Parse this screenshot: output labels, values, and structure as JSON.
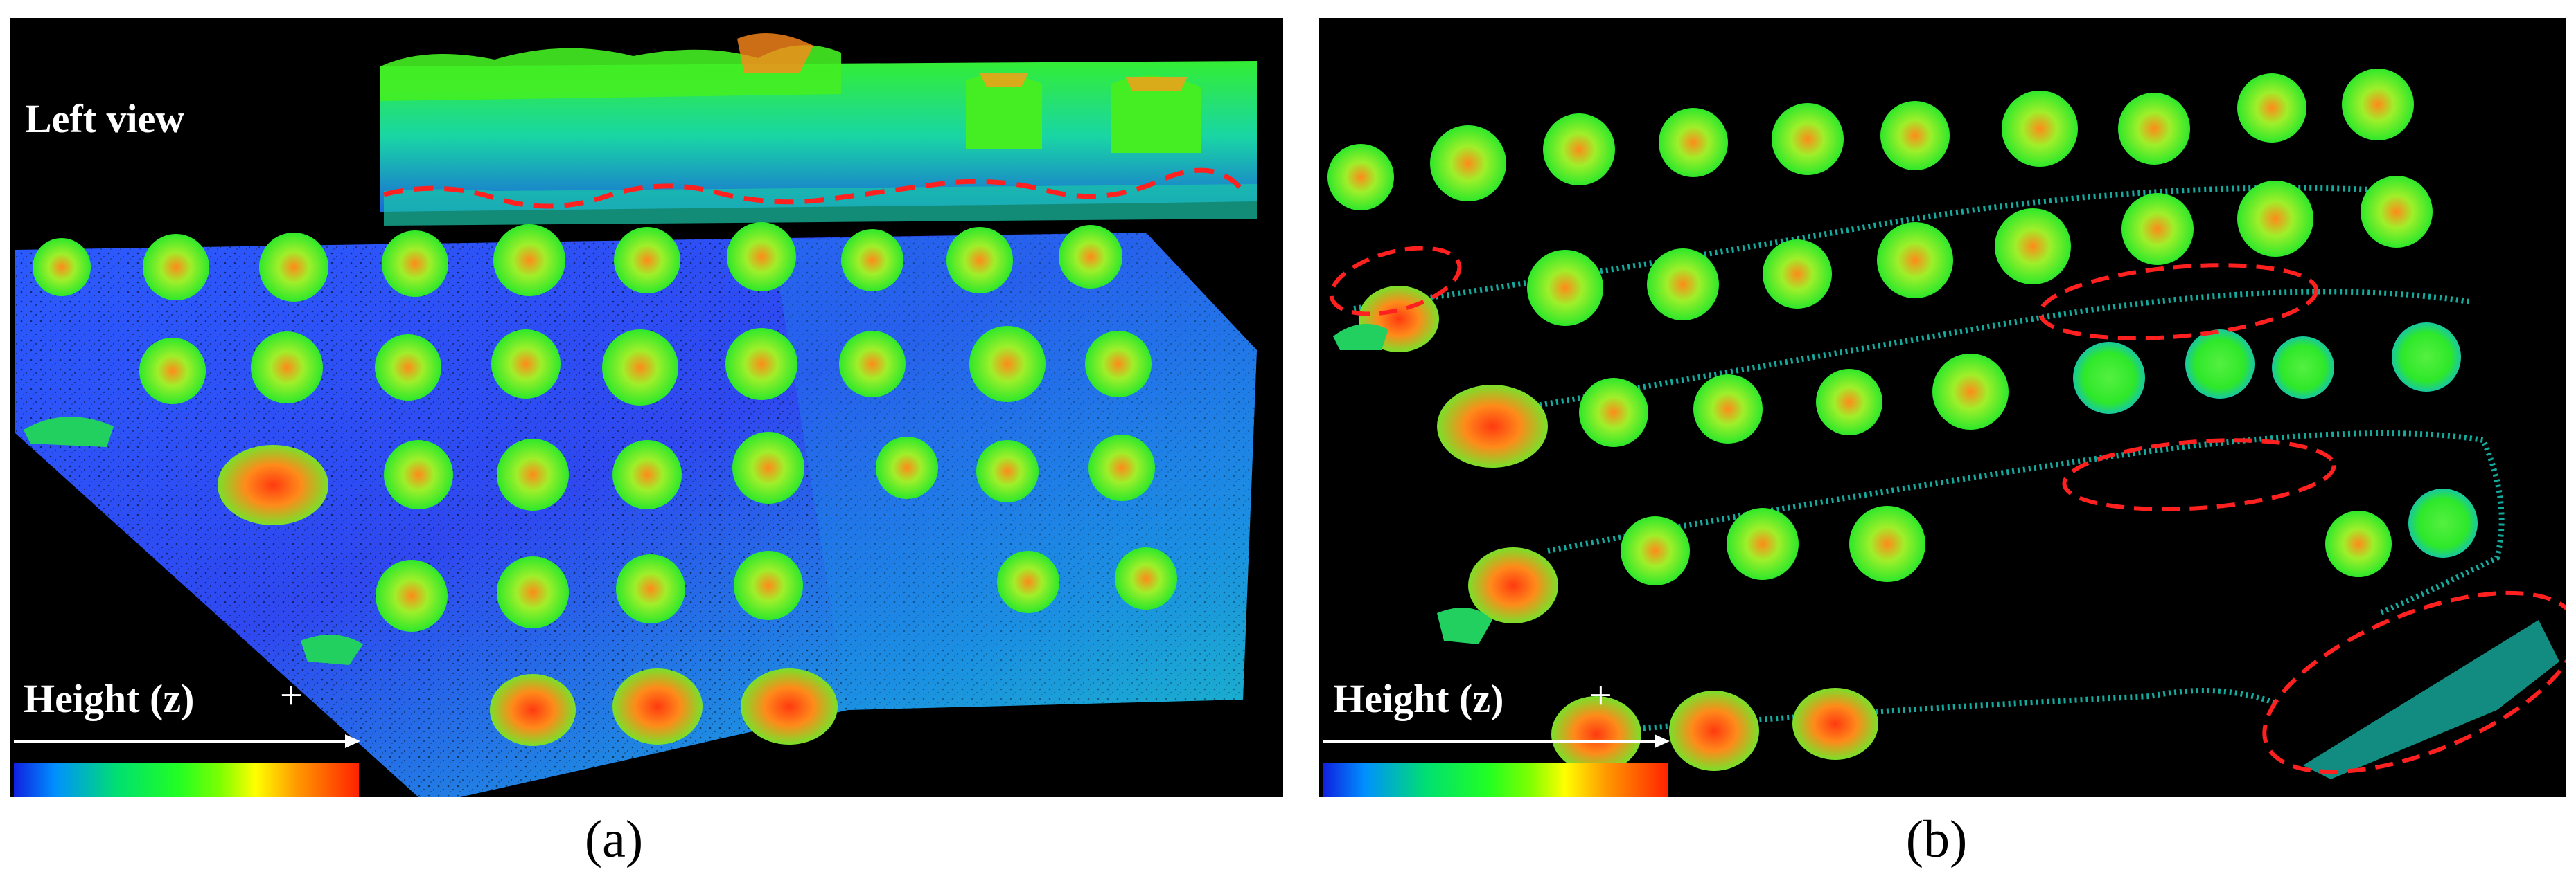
{
  "panel_a": {
    "caption": "(a)",
    "inset_label": "Left view",
    "legend_label": "Height (z)",
    "legend_plus": "+"
  },
  "panel_b": {
    "caption": "(b)",
    "legend_label": "Height (z)",
    "legend_plus": "+"
  },
  "colors": {
    "background": "#000000",
    "ground_low": "#2040ff",
    "ground_mid": "#00c8a0",
    "canopy": "#33ee22",
    "canopy_top": "#ff7a1a",
    "highlight_dash": "#ff2020"
  },
  "colormap": [
    "#1020e0",
    "#0090ff",
    "#00e070",
    "#22ff22",
    "#ffff00",
    "#ff9900",
    "#ff2200"
  ]
}
